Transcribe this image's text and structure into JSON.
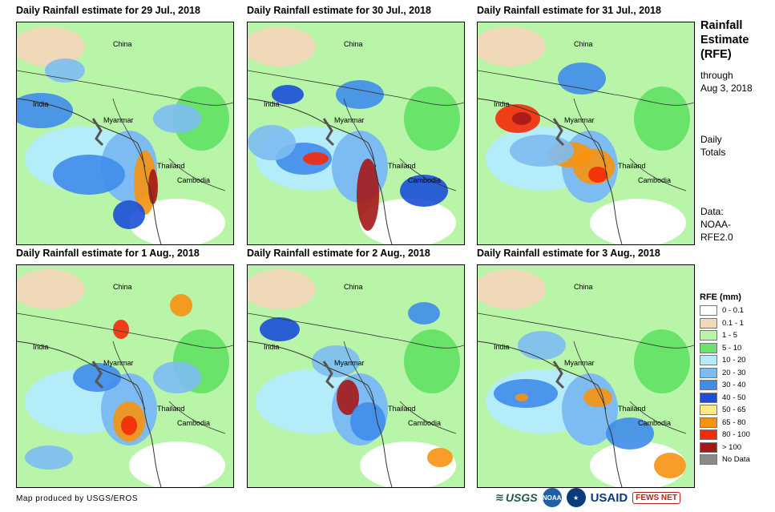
{
  "panels": [
    {
      "title": "Daily Rainfall estimate for 29 Jul., 2018"
    },
    {
      "title": "Daily Rainfall estimate for 30 Jul., 2018"
    },
    {
      "title": "Daily Rainfall estimate for 31 Jul., 2018"
    },
    {
      "title": "Daily Rainfall estimate for 1 Aug., 2018"
    },
    {
      "title": "Daily Rainfall estimate for 2 Aug., 2018"
    },
    {
      "title": "Daily Rainfall estimate for 3 Aug., 2018"
    }
  ],
  "map_labels": {
    "china": "China",
    "india": "India",
    "myanmar": "Myanmar",
    "thailand": "Thailand",
    "cambodia": "Cambodia"
  },
  "sidebar": {
    "title_lines": [
      "Rainfall",
      "Estimate",
      "(RFE)"
    ],
    "through": [
      "through",
      "Aug 3, 2018"
    ],
    "daily": [
      "Daily",
      "Totals"
    ],
    "data": [
      "Data:",
      "NOAA-",
      "RFE2.0"
    ]
  },
  "legend": {
    "title": "RFE (mm)",
    "items": [
      {
        "label": "0 - 0.1",
        "color": "#ffffff"
      },
      {
        "label": "0.1 - 1",
        "color": "#efd9b9"
      },
      {
        "label": "1 - 5",
        "color": "#b9f5a8"
      },
      {
        "label": "5 - 10",
        "color": "#6ae36a"
      },
      {
        "label": "10 - 20",
        "color": "#b4ecfa"
      },
      {
        "label": "20 - 30",
        "color": "#7dbcf2"
      },
      {
        "label": "30 - 40",
        "color": "#3f8ceb"
      },
      {
        "label": "40 - 50",
        "color": "#1a4fd6"
      },
      {
        "label": "50 - 65",
        "color": "#ffe887"
      },
      {
        "label": "65 - 80",
        "color": "#f7920f"
      },
      {
        "label": "80 - 100",
        "color": "#f42a0a"
      },
      {
        "label": "> 100",
        "color": "#a51818"
      },
      {
        "label": "No Data",
        "color": "#8a8a8a"
      }
    ]
  },
  "credit": "Map produced by USGS/EROS",
  "logos": {
    "usgs": "USGS",
    "noaa": "NOAA",
    "usaid": "USAID",
    "fewsnet": "FEWS NET"
  }
}
